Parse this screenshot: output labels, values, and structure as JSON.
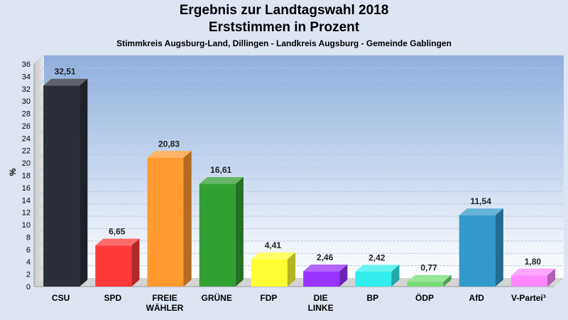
{
  "chart_data": {
    "type": "bar",
    "title": "Ergebnis zur Landtagswahl 2018",
    "subtitle": "Erststimmen in Prozent",
    "subsubtitle": "Stimmkreis Augsburg-Land, Dillingen - Landkreis Augsburg - Gemeinde Gablingen",
    "ylabel": "%",
    "ylim": [
      0,
      36
    ],
    "yticks": [
      0,
      2,
      4,
      6,
      8,
      10,
      12,
      14,
      16,
      18,
      20,
      22,
      24,
      26,
      28,
      30,
      32,
      34,
      36
    ],
    "grid": true,
    "categories": [
      [
        "CSU"
      ],
      [
        "SPD"
      ],
      [
        "FREIE",
        "WÄHLER"
      ],
      [
        "GRÜNE"
      ],
      [
        "FDP"
      ],
      [
        "DIE",
        "LINKE"
      ],
      [
        "BP"
      ],
      [
        "ÖDP"
      ],
      [
        "AfD"
      ],
      [
        "V-Partei³"
      ]
    ],
    "values": [
      32.51,
      6.65,
      20.83,
      16.61,
      4.41,
      2.46,
      2.42,
      0.77,
      11.54,
      1.8
    ],
    "value_labels": [
      "32,51",
      "6,65",
      "20,83",
      "16,61",
      "4,41",
      "2,46",
      "2,42",
      "0,77",
      "11,54",
      "1,80"
    ],
    "colors": [
      "#2b2f3a",
      "#ff3a3a",
      "#ff9a30",
      "#33a033",
      "#ffff33",
      "#9933ff",
      "#33eeee",
      "#77dd77",
      "#3399cc",
      "#ff88ff"
    ]
  }
}
